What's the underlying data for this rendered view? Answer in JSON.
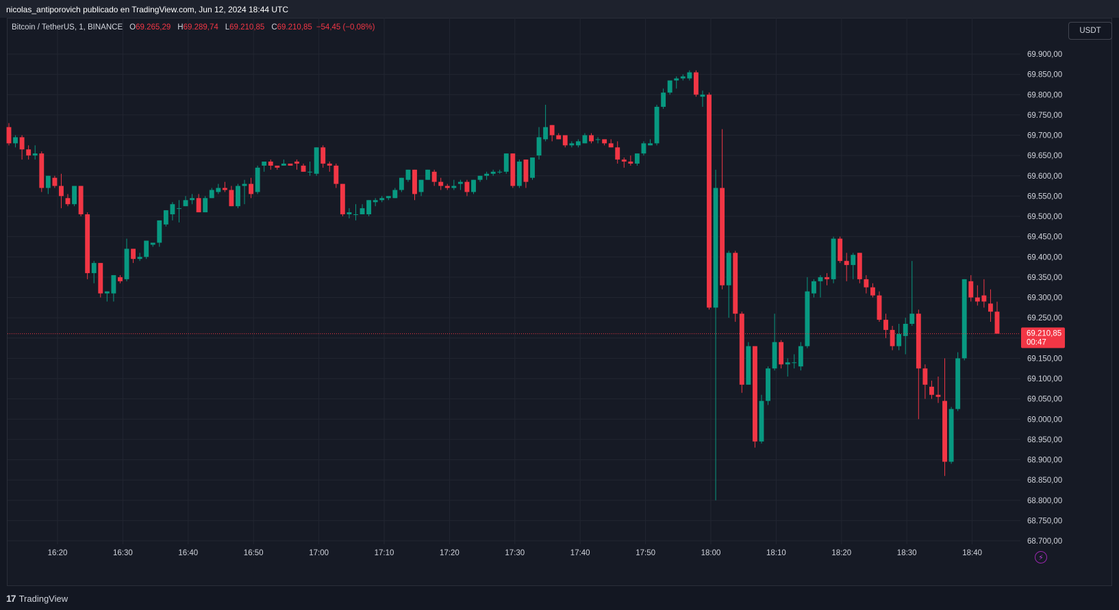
{
  "header": {
    "published": "nicolas_antiporovich publicado en TradingView.com, Jun 12, 2024 18:44 UTC"
  },
  "legend": {
    "symbol": "Bitcoin / TetherUS, 1, BINANCE",
    "o_label": "O",
    "o": "69.265,29",
    "h_label": "H",
    "h": "69.289,74",
    "l_label": "L",
    "l": "69.210,85",
    "c_label": "C",
    "c": "69.210,85",
    "change": "−54,45 (−0,08%)"
  },
  "unit_button": "USDT",
  "price_tag": {
    "price": "69.210,85",
    "countdown": "00:47"
  },
  "footer": {
    "brand": "TradingView",
    "logo_glyph": "17"
  },
  "colors": {
    "up": "#089981",
    "down": "#f23645",
    "background": "#161a25",
    "grid": "#222631"
  },
  "chart_data": {
    "type": "candlestick",
    "x_ticks": [
      "16:20",
      "16:30",
      "16:40",
      "16:50",
      "17:00",
      "17:10",
      "17:20",
      "17:30",
      "17:40",
      "17:50",
      "18:00",
      "18:10",
      "18:20",
      "18:30",
      "18:40"
    ],
    "y_ticks": [
      "69.900,00",
      "69.850,00",
      "69.800,00",
      "69.750,00",
      "69.700,00",
      "69.650,00",
      "69.600,00",
      "69.550,00",
      "69.500,00",
      "69.450,00",
      "69.400,00",
      "69.350,00",
      "69.300,00",
      "69.250,00",
      "69.200,00",
      "69.150,00",
      "69.100,00",
      "69.050,00",
      "69.000,00",
      "68.950,00",
      "68.900,00",
      "68.850,00",
      "68.800,00",
      "68.750,00",
      "68.700,00"
    ],
    "ylim": [
      68700,
      69900
    ],
    "last_price": 69210.85,
    "candles": [
      [
        69720,
        69730,
        69675,
        69680
      ],
      [
        69680,
        69700,
        69670,
        69695
      ],
      [
        69695,
        69700,
        69640,
        69665
      ],
      [
        69665,
        69675,
        69640,
        69650
      ],
      [
        69650,
        69675,
        69640,
        69655
      ],
      [
        69655,
        69660,
        69560,
        69570
      ],
      [
        69570,
        69600,
        69555,
        69600
      ],
      [
        69595,
        69600,
        69570,
        69575
      ],
      [
        69575,
        69605,
        69520,
        69550
      ],
      [
        69545,
        69555,
        69525,
        69530
      ],
      [
        69530,
        69575,
        69525,
        69575
      ],
      [
        69575,
        69575,
        69500,
        69505
      ],
      [
        69505,
        69510,
        69345,
        69360
      ],
      [
        69360,
        69390,
        69335,
        69385
      ],
      [
        69385,
        69385,
        69300,
        69310
      ],
      [
        69310,
        69315,
        69290,
        69315
      ],
      [
        69310,
        69355,
        69290,
        69355
      ],
      [
        69350,
        69355,
        69335,
        69340
      ],
      [
        69345,
        69445,
        69340,
        69420
      ],
      [
        69420,
        69420,
        69385,
        69395
      ],
      [
        69395,
        69410,
        69390,
        69400
      ],
      [
        69400,
        69440,
        69395,
        69440
      ],
      [
        69430,
        69435,
        69425,
        69435
      ],
      [
        69435,
        69490,
        69425,
        69490
      ],
      [
        69480,
        69515,
        69475,
        69515
      ],
      [
        69505,
        69535,
        69490,
        69530
      ],
      [
        69520,
        69540,
        69485,
        69520
      ],
      [
        69525,
        69550,
        69525,
        69540
      ],
      [
        69540,
        69555,
        69530,
        69545
      ],
      [
        69545,
        69555,
        69510,
        69510
      ],
      [
        69510,
        69550,
        69510,
        69545
      ],
      [
        69545,
        69570,
        69545,
        69565
      ],
      [
        69560,
        69580,
        69555,
        69570
      ],
      [
        69570,
        69585,
        69560,
        69565
      ],
      [
        69565,
        69575,
        69525,
        69525
      ],
      [
        69525,
        69580,
        69520,
        69575
      ],
      [
        69575,
        69590,
        69530,
        69580
      ],
      [
        69580,
        69595,
        69545,
        69555
      ],
      [
        69560,
        69625,
        69555,
        69620
      ],
      [
        69625,
        69635,
        69610,
        69635
      ],
      [
        69635,
        69640,
        69615,
        69625
      ],
      [
        69625,
        69625,
        69615,
        69620
      ],
      [
        69625,
        69640,
        69625,
        69630
      ],
      [
        69630,
        69630,
        69625,
        69625
      ],
      [
        69635,
        69640,
        69615,
        69630
      ],
      [
        69625,
        69630,
        69610,
        69610
      ],
      [
        69610,
        69635,
        69600,
        69610
      ],
      [
        69605,
        69670,
        69600,
        69670
      ],
      [
        69670,
        69675,
        69620,
        69630
      ],
      [
        69630,
        69635,
        69610,
        69625
      ],
      [
        69625,
        69630,
        69570,
        69580
      ],
      [
        69580,
        69580,
        69500,
        69505
      ],
      [
        69505,
        69520,
        69495,
        69510
      ],
      [
        69505,
        69530,
        69490,
        69505
      ],
      [
        69505,
        69530,
        69505,
        69520
      ],
      [
        69505,
        69540,
        69500,
        69540
      ],
      [
        69535,
        69545,
        69525,
        69540
      ],
      [
        69540,
        69550,
        69535,
        69545
      ],
      [
        69545,
        69550,
        69540,
        69550
      ],
      [
        69545,
        69570,
        69545,
        69565
      ],
      [
        69565,
        69595,
        69560,
        69595
      ],
      [
        69590,
        69615,
        69585,
        69615
      ],
      [
        69615,
        69615,
        69540,
        69555
      ],
      [
        69560,
        69590,
        69550,
        69590
      ],
      [
        69590,
        69615,
        69590,
        69615
      ],
      [
        69610,
        69615,
        69575,
        69585
      ],
      [
        69585,
        69595,
        69565,
        69575
      ],
      [
        69575,
        69580,
        69565,
        69570
      ],
      [
        69570,
        69590,
        69565,
        69575
      ],
      [
        69580,
        69590,
        69565,
        69585
      ],
      [
        69585,
        69590,
        69550,
        69560
      ],
      [
        69560,
        69590,
        69555,
        69590
      ],
      [
        69590,
        69600,
        69585,
        69600
      ],
      [
        69600,
        69610,
        69590,
        69605
      ],
      [
        69605,
        69615,
        69600,
        69610
      ],
      [
        69610,
        69615,
        69605,
        69610
      ],
      [
        69610,
        69655,
        69605,
        69655
      ],
      [
        69655,
        69655,
        69570,
        69575
      ],
      [
        69575,
        69640,
        69570,
        69635
      ],
      [
        69640,
        69640,
        69570,
        69585
      ],
      [
        69595,
        69645,
        69590,
        69645
      ],
      [
        69650,
        69720,
        69640,
        69695
      ],
      [
        69690,
        69775,
        69685,
        69720
      ],
      [
        69725,
        69725,
        69685,
        69700
      ],
      [
        69700,
        69705,
        69690,
        69690
      ],
      [
        69700,
        69700,
        69670,
        69675
      ],
      [
        69675,
        69685,
        69670,
        69680
      ],
      [
        69675,
        69690,
        69670,
        69685
      ],
      [
        69680,
        69705,
        69680,
        69700
      ],
      [
        69700,
        69705,
        69680,
        69685
      ],
      [
        69690,
        69695,
        69680,
        69690
      ],
      [
        69690,
        69690,
        69675,
        69680
      ],
      [
        69680,
        69690,
        69670,
        69670
      ],
      [
        69670,
        69685,
        69630,
        69640
      ],
      [
        69640,
        69645,
        69620,
        69635
      ],
      [
        69635,
        69650,
        69625,
        69630
      ],
      [
        69630,
        69655,
        69625,
        69655
      ],
      [
        69655,
        69685,
        69650,
        69680
      ],
      [
        69675,
        69690,
        69675,
        69680
      ],
      [
        69680,
        69775,
        69675,
        69770
      ],
      [
        69770,
        69815,
        69765,
        69805
      ],
      [
        69805,
        69830,
        69800,
        69835
      ],
      [
        69835,
        69845,
        69815,
        69840
      ],
      [
        69840,
        69850,
        69835,
        69845
      ],
      [
        69840,
        69860,
        69835,
        69855
      ],
      [
        69855,
        69860,
        69795,
        69800
      ],
      [
        69795,
        69810,
        69770,
        69800
      ],
      [
        69800,
        69805,
        69270,
        69275
      ],
      [
        69275,
        69615,
        68800,
        69570
      ],
      [
        69570,
        69715,
        69320,
        69330
      ],
      [
        69330,
        69415,
        69250,
        69410
      ],
      [
        69410,
        69415,
        69240,
        69260
      ],
      [
        69260,
        69265,
        69065,
        69085
      ],
      [
        69085,
        69190,
        69085,
        69180
      ],
      [
        69180,
        69180,
        68930,
        68945
      ],
      [
        68945,
        69060,
        68940,
        69045
      ],
      [
        69045,
        69130,
        69035,
        69125
      ],
      [
        69125,
        69260,
        69120,
        69190
      ],
      [
        69190,
        69195,
        69125,
        69135
      ],
      [
        69135,
        69150,
        69105,
        69140
      ],
      [
        69140,
        69160,
        69125,
        69140
      ],
      [
        69130,
        69190,
        69120,
        69180
      ],
      [
        69180,
        69350,
        69175,
        69315
      ],
      [
        69310,
        69345,
        69300,
        69340
      ],
      [
        69340,
        69355,
        69300,
        69350
      ],
      [
        69350,
        69360,
        69330,
        69345
      ],
      [
        69345,
        69450,
        69335,
        69445
      ],
      [
        69445,
        69450,
        69385,
        69390
      ],
      [
        69390,
        69410,
        69340,
        69380
      ],
      [
        69380,
        69410,
        69345,
        69405
      ],
      [
        69410,
        69410,
        69335,
        69345
      ],
      [
        69345,
        69355,
        69310,
        69325
      ],
      [
        69325,
        69335,
        69300,
        69305
      ],
      [
        69305,
        69315,
        69240,
        69245
      ],
      [
        69245,
        69260,
        69200,
        69220
      ],
      [
        69220,
        69230,
        69170,
        69180
      ],
      [
        69180,
        69235,
        69170,
        69210
      ],
      [
        69205,
        69250,
        69160,
        69235
      ],
      [
        69235,
        69390,
        69230,
        69260
      ],
      [
        69260,
        69270,
        69000,
        69125
      ],
      [
        69125,
        69135,
        69050,
        69085
      ],
      [
        69080,
        69095,
        69050,
        69060
      ],
      [
        69060,
        69105,
        69040,
        69055
      ],
      [
        69045,
        69150,
        68860,
        68895
      ],
      [
        68895,
        69030,
        68890,
        69025
      ],
      [
        69025,
        69165,
        69020,
        69150
      ],
      [
        69150,
        69345,
        69145,
        69345
      ],
      [
        69340,
        69355,
        69290,
        69300
      ],
      [
        69300,
        69330,
        69280,
        69290
      ],
      [
        69305,
        69345,
        69275,
        69290
      ],
      [
        69285,
        69320,
        69240,
        69265
      ],
      [
        69265,
        69289.74,
        69210.85,
        69210.85
      ]
    ]
  }
}
